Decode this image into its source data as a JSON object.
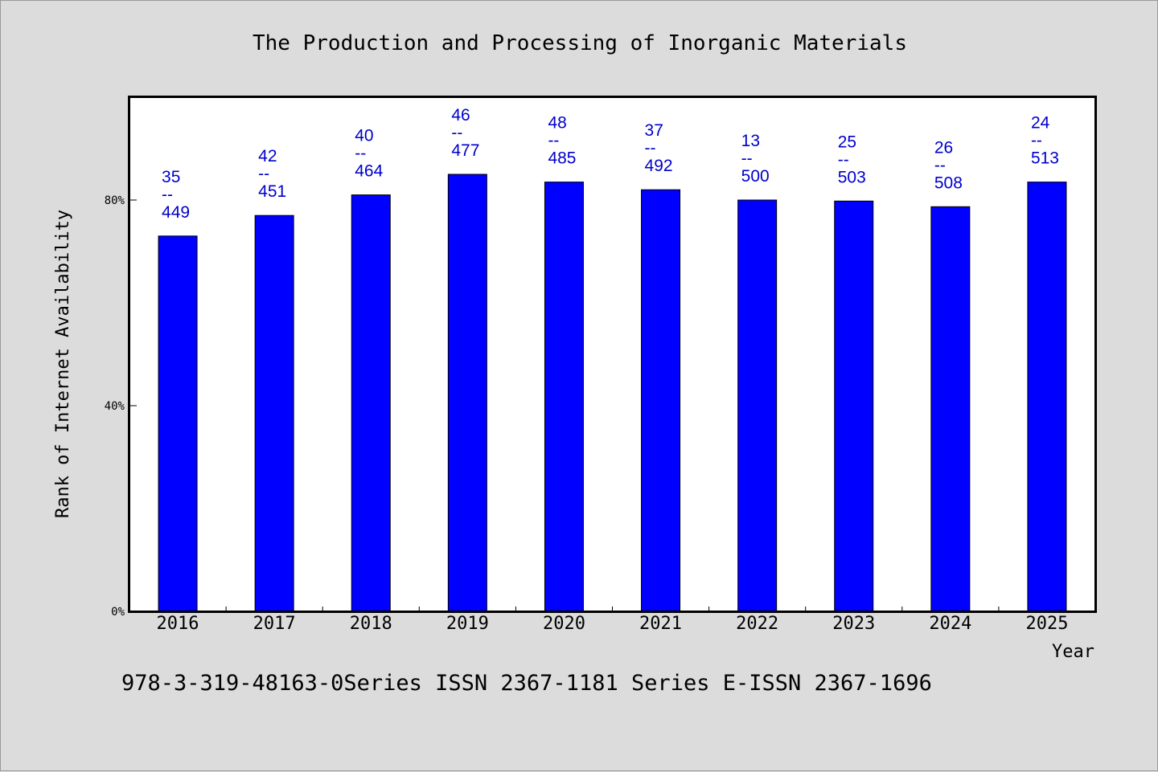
{
  "chart_data": {
    "type": "bar",
    "title": "The Production and Processing of Inorganic Materials",
    "xlabel": "Year",
    "ylabel": "Rank of Internet Availability",
    "categories": [
      "2016",
      "2017",
      "2018",
      "2019",
      "2020",
      "2021",
      "2022",
      "2023",
      "2024",
      "2025"
    ],
    "values": [
      73.0,
      77.0,
      81.0,
      85.0,
      83.5,
      82.0,
      80.0,
      79.8,
      78.7,
      83.5
    ],
    "bar_labels": [
      {
        "top": "35",
        "sep": "--",
        "bottom": "449"
      },
      {
        "top": "42",
        "sep": "--",
        "bottom": "451"
      },
      {
        "top": "40",
        "sep": "--",
        "bottom": "464"
      },
      {
        "top": "46",
        "sep": "--",
        "bottom": "477"
      },
      {
        "top": "48",
        "sep": "--",
        "bottom": "485"
      },
      {
        "top": "37",
        "sep": "--",
        "bottom": "492"
      },
      {
        "top": "13",
        "sep": "--",
        "bottom": "500"
      },
      {
        "top": "25",
        "sep": "--",
        "bottom": "503"
      },
      {
        "top": "26",
        "sep": "--",
        "bottom": "508"
      },
      {
        "top": "24",
        "sep": "--",
        "bottom": "513"
      }
    ],
    "y_ticks": [
      {
        "value": 0,
        "label": "0%"
      },
      {
        "value": 40,
        "label": "40%"
      },
      {
        "value": 80,
        "label": "80%"
      }
    ],
    "ylim": [
      0,
      100
    ],
    "grid": false,
    "bar_color": "#0000ff",
    "label_color": "#0000cc",
    "plot_background": "#ffffff"
  },
  "footer": "978-3-319-48163-0Series ISSN 2367-1181 Series E-ISSN 2367-1696"
}
